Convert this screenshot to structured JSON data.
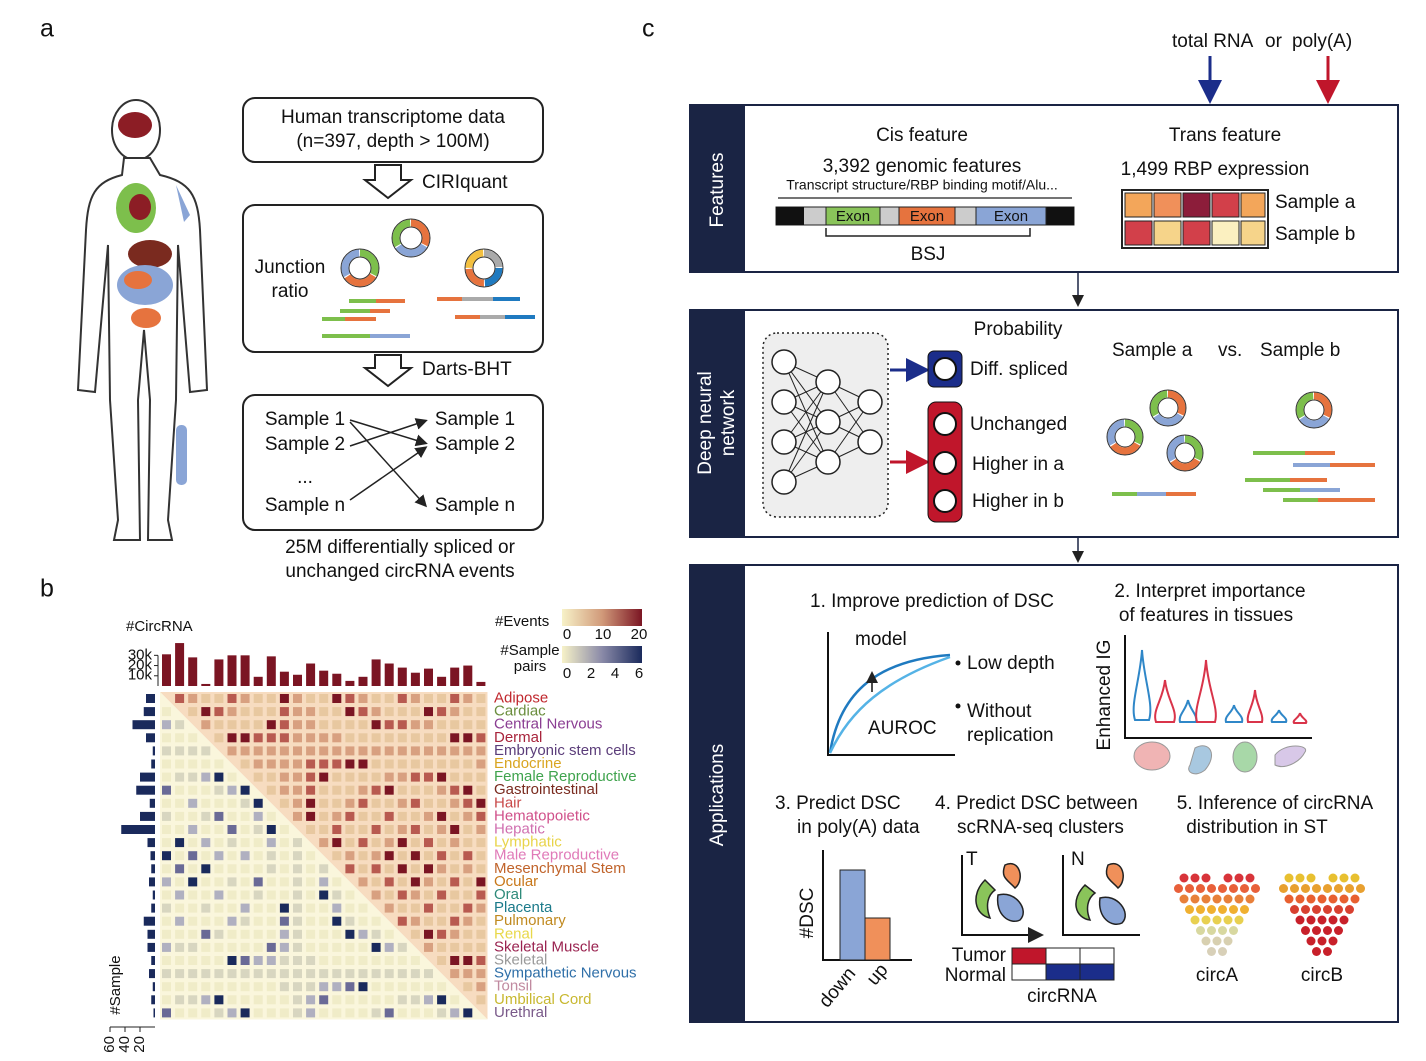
{
  "panel_a": {
    "label": "a",
    "box1": [
      "Human transcriptome data",
      "(n=397, depth > 100M)"
    ],
    "step1": "CIRIquant",
    "box2": [
      "Junction",
      "ratio"
    ],
    "step2": "Darts-BHT",
    "left_samples": [
      "Sample 1",
      "Sample 2",
      "...",
      "Sample n"
    ],
    "right_samples": [
      "Sample 1",
      "Sample 2",
      "Sample n"
    ],
    "caption": [
      "25M differentially spliced or",
      "unchanged circRNA events"
    ]
  },
  "panel_b": {
    "label": "b",
    "events_legend": {
      "title": "#Events",
      "ticks": [
        0,
        10,
        20
      ]
    },
    "pairs_legend": {
      "title": [
        "#Sample",
        "pairs"
      ],
      "ticks": [
        0,
        2,
        4,
        6
      ]
    }
  },
  "chart_data": [
    {
      "type": "bar",
      "title": "#CircRNA",
      "color": "#7b1523",
      "values": [
        31000,
        42000,
        28000,
        2000,
        26000,
        30000,
        30000,
        9000,
        29000,
        14000,
        11000,
        22000,
        15000,
        12000,
        5000,
        9000,
        26000,
        22000,
        18000,
        13000,
        17000,
        9000,
        18000,
        20000,
        4000
      ],
      "ylim": [
        0,
        45000
      ],
      "yticks": [
        {
          "value": 10000,
          "label": "10k"
        },
        {
          "value": 20000,
          "label": "20k"
        },
        {
          "value": 30000,
          "label": "30k"
        }
      ]
    },
    {
      "type": "hbar",
      "title": "#Sample",
      "color": "#1a2a5c",
      "categories": [
        "Adipose",
        "Cardiac",
        "Central Nervous",
        "Dermal",
        "Embryonic stem cells",
        "Endocrine",
        "Female Reproductive",
        "Gastrointestinal",
        "Hair",
        "Hematopoietic",
        "Hepatic",
        "Lymphatic",
        "Male Reproductive",
        "Mesenchymal Stem",
        "Ocular",
        "Oral",
        "Placenta",
        "Pulmonary",
        "Renal",
        "Skeletal Muscle",
        "Skeletal",
        "Sympathetic Nervous",
        "Tonsil",
        "Umbilical Cord",
        "Urethral"
      ],
      "label_colors": [
        "#c0272d",
        "#6b8e3e",
        "#8a3d92",
        "#a8243c",
        "#5b3d7a",
        "#d9a520",
        "#3fa34d",
        "#7a2b1f",
        "#c94a4a",
        "#d0508a",
        "#d070b0",
        "#e8d44a",
        "#e07ab8",
        "#c0632a",
        "#c8781a",
        "#2e8a7a",
        "#1b7a8a",
        "#c08a20",
        "#e8d84a",
        "#9a2350",
        "#9a9a9a",
        "#2f6fa8",
        "#c08aa0",
        "#c8b830",
        "#7a5a8a"
      ],
      "values": [
        12,
        15,
        30,
        12,
        3,
        5,
        20,
        25,
        7,
        20,
        45,
        10,
        6,
        5,
        8,
        3,
        5,
        15,
        10,
        10,
        5,
        8,
        3,
        5,
        2
      ],
      "xlim": [
        0,
        60
      ],
      "xticks": [
        20,
        40,
        60
      ]
    }
  ],
  "panel_c": {
    "label": "c",
    "inputs": [
      "total RNA",
      "or",
      "poly(A)"
    ],
    "features": {
      "side": "Features",
      "cis_title": "Cis feature",
      "cis_count": "3,392 genomic features",
      "cis_desc": "Transcript structure/RBP binding motif/Alu...",
      "exons": [
        "Exon",
        "Exon",
        "Exon"
      ],
      "bsj": "BSJ",
      "trans_title": "Trans feature",
      "trans_count": "1,499 RBP expression",
      "samples": [
        "Sample a",
        "Sample b"
      ]
    },
    "dnn": {
      "side": [
        "Deep neural",
        "network"
      ],
      "probability": "Probability",
      "diff": "Diff. spliced",
      "outputs": [
        "Unchanged",
        "Higher in a",
        "Higher in b"
      ],
      "compare": [
        "Sample a",
        "vs.",
        "Sample b"
      ]
    },
    "applications": {
      "side": "Applications",
      "app1": {
        "title": "1. Improve prediction of DSC",
        "model": "model",
        "auroc": "AUROC",
        "low": "Low depth",
        "without": [
          "Without",
          "replication"
        ]
      },
      "app2": {
        "title": [
          "2. Interpret importance",
          "of features in tissues"
        ],
        "ylabel": "Enhanced IG"
      },
      "app3": {
        "title": [
          "3. Predict DSC",
          "in poly(A) data"
        ],
        "ylabel": "#DSC",
        "x": [
          "down",
          "up"
        ]
      },
      "app4": {
        "title": [
          "4. Predict DSC between",
          "scRNA-seq clusters"
        ],
        "t": "T",
        "n": "N",
        "rows": [
          "Tumor",
          "Normal"
        ],
        "xlabel": "circRNA"
      },
      "app5": {
        "title": [
          "5. Inference of circRNA",
          "distribution in ST"
        ],
        "labels": [
          "circA",
          "circB"
        ]
      }
    }
  }
}
